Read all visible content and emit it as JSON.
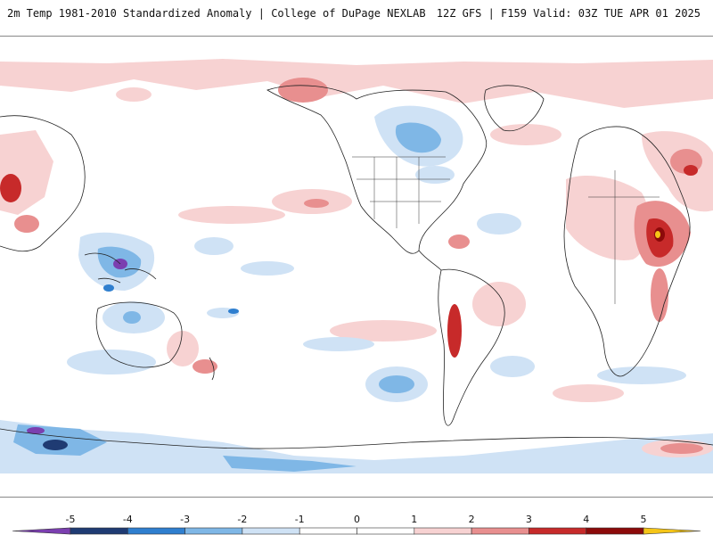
{
  "header": {
    "title_left": "2m Temp 1981-2010 Standardized Anomaly | College of DuPage NEXLAB",
    "title_right": "12Z GFS | F159 Valid: 03Z TUE APR 01 2025"
  },
  "legend": {
    "ticks": [
      "-5",
      "-4",
      "-3",
      "-2",
      "-1",
      "0",
      "1",
      "2",
      "3",
      "4",
      "5"
    ],
    "bins": [
      {
        "range": "-5.5 to -5",
        "color": "#7b3fb0"
      },
      {
        "range": "-5 to -4",
        "color": "#1f3b73"
      },
      {
        "range": "-4 to -3",
        "color": "#2f7fcf"
      },
      {
        "range": "-3 to -2",
        "color": "#7fb7e6"
      },
      {
        "range": "-2 to -1",
        "color": "#cfe2f5"
      },
      {
        "range": "-1 to 0",
        "color": "#ffffff"
      },
      {
        "range": "0 to 1",
        "color": "#ffffff"
      },
      {
        "range": "1 to 2",
        "color": "#f7d2d2"
      },
      {
        "range": "2 to 3",
        "color": "#e88f8f"
      },
      {
        "range": "3 to 4",
        "color": "#c72a2a"
      },
      {
        "range": "4 to 5",
        "color": "#8c0a0a"
      },
      {
        "range": "5 to 5.5",
        "color": "#f5c518"
      }
    ]
  },
  "map": {
    "projection": "equirectangular, Pacific-centered",
    "colors": {
      "land_outline": "#222222",
      "light_blue": "#cfe2f5",
      "mid_blue": "#7fb7e6",
      "blue": "#2f7fcf",
      "dark_blue": "#1f3b73",
      "purple": "#7b3fb0",
      "light_red": "#f7d2d2",
      "mid_red": "#e88f8f",
      "red": "#c72a2a",
      "dark_red": "#8c0a0a",
      "yellow": "#f5c518"
    }
  }
}
